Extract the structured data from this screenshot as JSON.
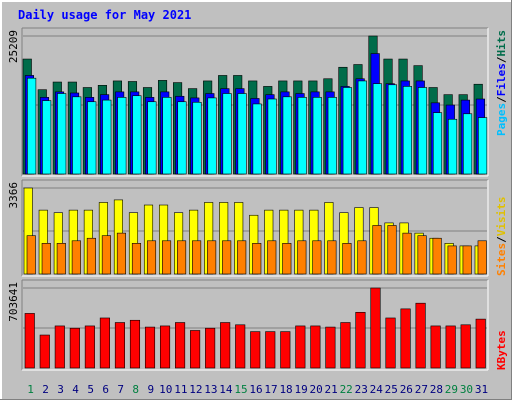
{
  "title": "Daily usage for May 2021",
  "chart_data": [
    {
      "type": "bar",
      "name": "pages-files-hits",
      "categories": [
        "1",
        "2",
        "3",
        "4",
        "5",
        "6",
        "7",
        "8",
        "9",
        "10",
        "11",
        "12",
        "13",
        "14",
        "15",
        "16",
        "17",
        "18",
        "19",
        "20",
        "21",
        "22",
        "23",
        "24",
        "25",
        "26",
        "27",
        "28",
        "29",
        "30",
        "31"
      ],
      "max_label": "25209",
      "ylim": [
        0,
        25209
      ],
      "series": [
        {
          "name": "Hits",
          "color": "#006c4a",
          "values": [
            21000,
            15400,
            16800,
            16800,
            15800,
            16200,
            17000,
            16900,
            15800,
            17100,
            16700,
            15600,
            17000,
            18000,
            18000,
            17000,
            16000,
            17000,
            17000,
            17000,
            17400,
            19500,
            20000,
            25209,
            21000,
            21000,
            19800,
            15800,
            14500,
            14500,
            16400
          ]
        },
        {
          "name": "Files",
          "color": "#0000ff",
          "values": [
            18000,
            14000,
            15000,
            14800,
            14000,
            14500,
            15000,
            15000,
            14000,
            15000,
            14200,
            13900,
            14700,
            15600,
            15600,
            13800,
            14500,
            15000,
            14700,
            15000,
            15000,
            16000,
            17400,
            22000,
            16500,
            17000,
            17000,
            13000,
            12600,
            13500,
            13700
          ]
        },
        {
          "name": "Pages",
          "color": "#00ffff",
          "values": [
            17500,
            13400,
            14700,
            14100,
            13200,
            13500,
            14000,
            14300,
            13200,
            14000,
            13200,
            13100,
            13900,
            14700,
            14700,
            12800,
            13700,
            14100,
            14000,
            14000,
            14000,
            15800,
            17000,
            16500,
            16300,
            16000,
            15800,
            11200,
            10000,
            11000,
            10300
          ]
        }
      ]
    },
    {
      "type": "bar",
      "name": "visits-sites",
      "categories": [
        "1",
        "2",
        "3",
        "4",
        "5",
        "6",
        "7",
        "8",
        "9",
        "10",
        "11",
        "12",
        "13",
        "14",
        "15",
        "16",
        "17",
        "18",
        "19",
        "20",
        "21",
        "22",
        "23",
        "24",
        "25",
        "26",
        "27",
        "28",
        "29",
        "30",
        "31"
      ],
      "max_label": "3366",
      "ylim": [
        0,
        3366
      ],
      "series": [
        {
          "name": "Visits",
          "color": "#ffff00",
          "values": [
            3366,
            2500,
            2400,
            2500,
            2500,
            2800,
            2900,
            2400,
            2700,
            2700,
            2400,
            2500,
            2800,
            2800,
            2800,
            2300,
            2500,
            2500,
            2500,
            2500,
            2800,
            2400,
            2600,
            2600,
            2000,
            2000,
            1600,
            1400,
            1200,
            1100,
            1100
          ]
        },
        {
          "name": "Sites",
          "color": "#ff8000",
          "values": [
            1500,
            1200,
            1200,
            1300,
            1400,
            1500,
            1600,
            1200,
            1300,
            1300,
            1300,
            1300,
            1300,
            1300,
            1300,
            1200,
            1300,
            1200,
            1300,
            1300,
            1300,
            1200,
            1300,
            1900,
            1900,
            1600,
            1500,
            1400,
            1100,
            1100,
            1300
          ]
        }
      ]
    },
    {
      "type": "bar",
      "name": "kbytes",
      "categories": [
        "1",
        "2",
        "3",
        "4",
        "5",
        "6",
        "7",
        "8",
        "9",
        "10",
        "11",
        "12",
        "13",
        "14",
        "15",
        "16",
        "17",
        "18",
        "19",
        "20",
        "21",
        "22",
        "23",
        "24",
        "25",
        "26",
        "27",
        "28",
        "29",
        "30",
        "31"
      ],
      "max_label": "703641",
      "ylim": [
        0,
        703641
      ],
      "series": [
        {
          "name": "KBytes",
          "color": "#ff0000",
          "values": [
            480000,
            290000,
            370000,
            350000,
            370000,
            440000,
            400000,
            420000,
            360000,
            370000,
            400000,
            330000,
            350000,
            400000,
            380000,
            320000,
            320000,
            320000,
            370000,
            370000,
            360000,
            400000,
            490000,
            703641,
            440000,
            520000,
            570000,
            370000,
            370000,
            380000,
            430000
          ]
        }
      ]
    }
  ],
  "legend": {
    "top": [
      {
        "text": "Pages",
        "color": "#00bfff"
      },
      {
        "text": "/",
        "color": "#000000"
      },
      {
        "text": "Files",
        "color": "#0000ff"
      },
      {
        "text": "/",
        "color": "#000000"
      },
      {
        "text": "Hits",
        "color": "#006c4a"
      }
    ],
    "middle": [
      {
        "text": "Sites",
        "color": "#ff8000"
      },
      {
        "text": "/",
        "color": "#000000"
      },
      {
        "text": "Visits",
        "color": "#e0c000"
      }
    ],
    "bottom": [
      {
        "text": "KBytes",
        "color": "#ff0000"
      }
    ]
  },
  "weekend_days": [
    1,
    8,
    15,
    22,
    29,
    30
  ]
}
